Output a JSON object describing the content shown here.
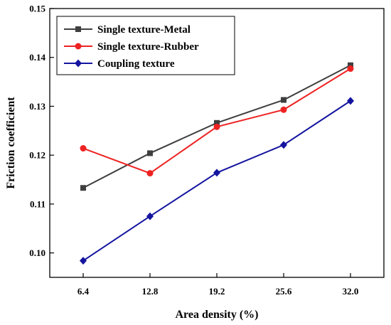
{
  "chart_data": {
    "type": "line",
    "xlabel": "Area density (%)",
    "ylabel": "Friction coefficient",
    "x": [
      6.4,
      12.8,
      19.2,
      25.6,
      32.0
    ],
    "x_tick_labels": [
      "6.4",
      "12.8",
      "19.2",
      "25.6",
      "32.0"
    ],
    "ylim": [
      0.095,
      0.15
    ],
    "y_ticks": [
      0.1,
      0.11,
      0.12,
      0.13,
      0.14,
      0.15
    ],
    "y_tick_labels": [
      "0.10",
      "0.11",
      "0.12",
      "0.13",
      "0.14",
      "0.15"
    ],
    "grid": false,
    "legend_position": "top-left",
    "series": [
      {
        "name": "Single texture-Metal",
        "color": "#3f3f3f",
        "marker": "square",
        "values": [
          0.1133,
          0.1204,
          0.1266,
          0.1313,
          0.1384
        ]
      },
      {
        "name": "Single texture-Rubber",
        "color": "#ee2222",
        "marker": "circle",
        "values": [
          0.1214,
          0.1163,
          0.1258,
          0.1293,
          0.1377
        ]
      },
      {
        "name": "Coupling texture",
        "color": "#1414a0",
        "marker": "diamond",
        "values": [
          0.0984,
          0.1075,
          0.1164,
          0.1221,
          0.1311
        ]
      }
    ]
  }
}
